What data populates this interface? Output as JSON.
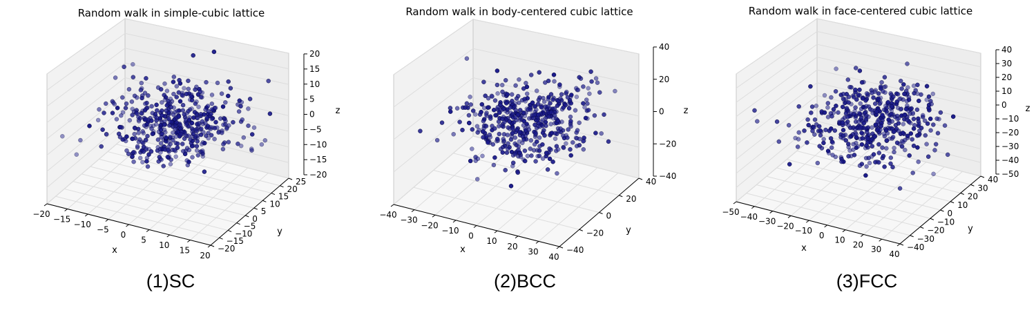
{
  "captions": [
    "(1)SC",
    "(2)BCC",
    "(3)FCC"
  ],
  "colors": {
    "marker": "#1a1a8a",
    "pane": "#f2f2f2",
    "pane_edge": "#c8c8c8",
    "grid": "#dddddd"
  },
  "chart_data": [
    {
      "type": "scatter3d",
      "title": "Random walk in simple-cubic lattice",
      "xlabel": "x",
      "ylabel": "y",
      "zlabel": "z",
      "xticks": [
        "−20",
        "−15",
        "−10",
        "−5",
        "0",
        "5",
        "10",
        "15",
        "20"
      ],
      "yticks": [
        "−20",
        "−15",
        "−10",
        "−5",
        "0",
        "5",
        "10",
        "15",
        "20",
        "25"
      ],
      "zticks": [
        "20",
        "15",
        "10",
        "5",
        "0",
        "−5",
        "−10",
        "−15",
        "−20"
      ],
      "xlim": [
        -20,
        20
      ],
      "ylim": [
        -20,
        25
      ],
      "zlim": [
        -20,
        20
      ],
      "grid": true,
      "marker_color": "#1a1a8a",
      "n_points": 480,
      "spread": 7
    },
    {
      "type": "scatter3d",
      "title": "Random walk in body-centered cubic lattice",
      "xlabel": "x",
      "ylabel": "y",
      "zlabel": "z",
      "xticks": [
        "−40",
        "−30",
        "−20",
        "−10",
        "0",
        "10",
        "20",
        "30",
        "40"
      ],
      "yticks": [
        "−40",
        "−20",
        "0",
        "20",
        "40"
      ],
      "zticks": [
        "40",
        "20",
        "0",
        "−20",
        "−40"
      ],
      "xlim": [
        -40,
        40
      ],
      "ylim": [
        -40,
        40
      ],
      "zlim": [
        -50,
        50
      ],
      "grid": true,
      "marker_color": "#1a1a8a",
      "n_points": 480,
      "spread": 12
    },
    {
      "type": "scatter3d",
      "title": "Random walk in face-centered cubic lattice",
      "xlabel": "x",
      "ylabel": "y",
      "zlabel": "z",
      "xticks": [
        "−50",
        "−40",
        "−30",
        "−20",
        "−10",
        "0",
        "10",
        "20",
        "30",
        "40"
      ],
      "yticks": [
        "−40",
        "−30",
        "−20",
        "−10",
        "0",
        "10",
        "20",
        "30",
        "40"
      ],
      "zticks": [
        "40",
        "30",
        "20",
        "10",
        "0",
        "−10",
        "−20",
        "−30",
        "−40",
        "−50"
      ],
      "xlim": [
        -50,
        40
      ],
      "ylim": [
        -40,
        40
      ],
      "zlim": [
        -50,
        40
      ],
      "grid": true,
      "marker_color": "#1a1a8a",
      "n_points": 480,
      "spread": 14
    }
  ]
}
